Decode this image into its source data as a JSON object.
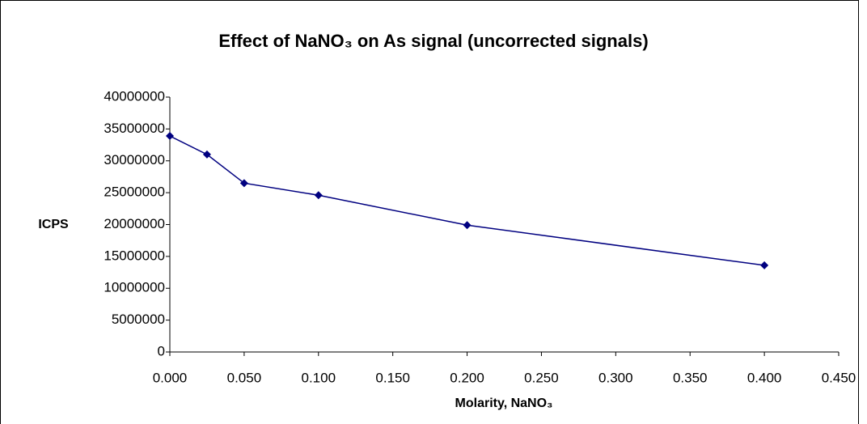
{
  "chart_data": {
    "type": "line",
    "title": "Effect of NaNO₃ on As signal (uncorrected signals)",
    "x_label": "Molarity, NaNO₃",
    "y_label": "ICPS",
    "x": [
      0,
      0.025,
      0.05,
      0.1,
      0.2,
      0.4
    ],
    "series": [
      {
        "name": "ICPS",
        "color": "#000080",
        "values": [
          33900000,
          31000000,
          26500000,
          24600000,
          19900000,
          13600000
        ]
      }
    ],
    "xlim": [
      0,
      0.45
    ],
    "xticks": [
      {
        "value": 0,
        "label": "0.000"
      },
      {
        "value": 0.05,
        "label": "0.050"
      },
      {
        "value": 0.1,
        "label": "0.100"
      },
      {
        "value": 0.15,
        "label": "0.150"
      },
      {
        "value": 0.2,
        "label": "0.200"
      },
      {
        "value": 0.25,
        "label": "0.250"
      },
      {
        "value": 0.3,
        "label": "0.300"
      },
      {
        "value": 0.35,
        "label": "0.350"
      },
      {
        "value": 0.4,
        "label": "0.400"
      },
      {
        "value": 0.45,
        "label": "0.450"
      }
    ],
    "ylim": [
      0,
      40000000
    ],
    "yticks": [
      0,
      5000000,
      10000000,
      15000000,
      20000000,
      25000000,
      30000000,
      35000000,
      40000000
    ],
    "grid": false
  }
}
